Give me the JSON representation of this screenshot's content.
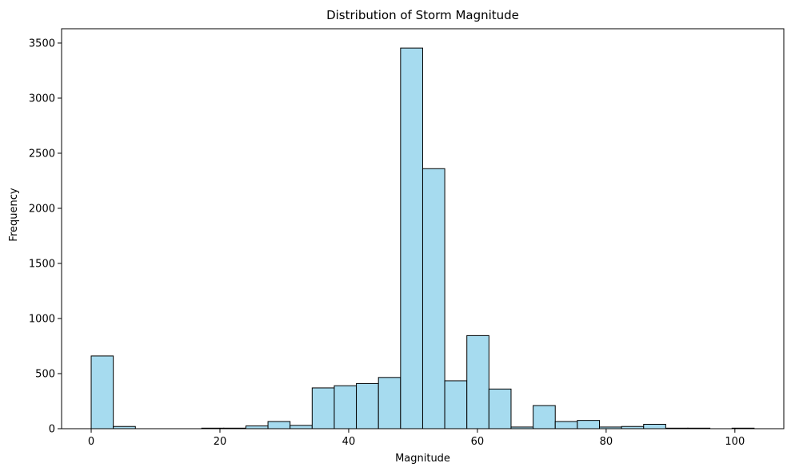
{
  "chart_data": {
    "type": "histogram",
    "title": "Distribution of Storm Magnitude",
    "xlabel": "Magnitude",
    "ylabel": "Frequency",
    "xlim": [
      -4.6,
      107.6
    ],
    "ylim": [
      0,
      3630
    ],
    "xticks": [
      0,
      20,
      40,
      60,
      80,
      100
    ],
    "yticks": [
      0,
      500,
      1000,
      1500,
      2000,
      2500,
      3000,
      3500
    ],
    "bin_start": 0,
    "bin_width": 3.433,
    "counts": [
      660,
      20,
      0,
      0,
      0,
      5,
      5,
      25,
      65,
      30,
      370,
      390,
      410,
      465,
      3455,
      2360,
      435,
      845,
      360,
      15,
      210,
      65,
      75,
      15,
      20,
      40,
      5,
      5,
      0,
      5
    ],
    "bar_fill": "#a6dbef",
    "bar_edge": "#000000",
    "grid": false
  }
}
